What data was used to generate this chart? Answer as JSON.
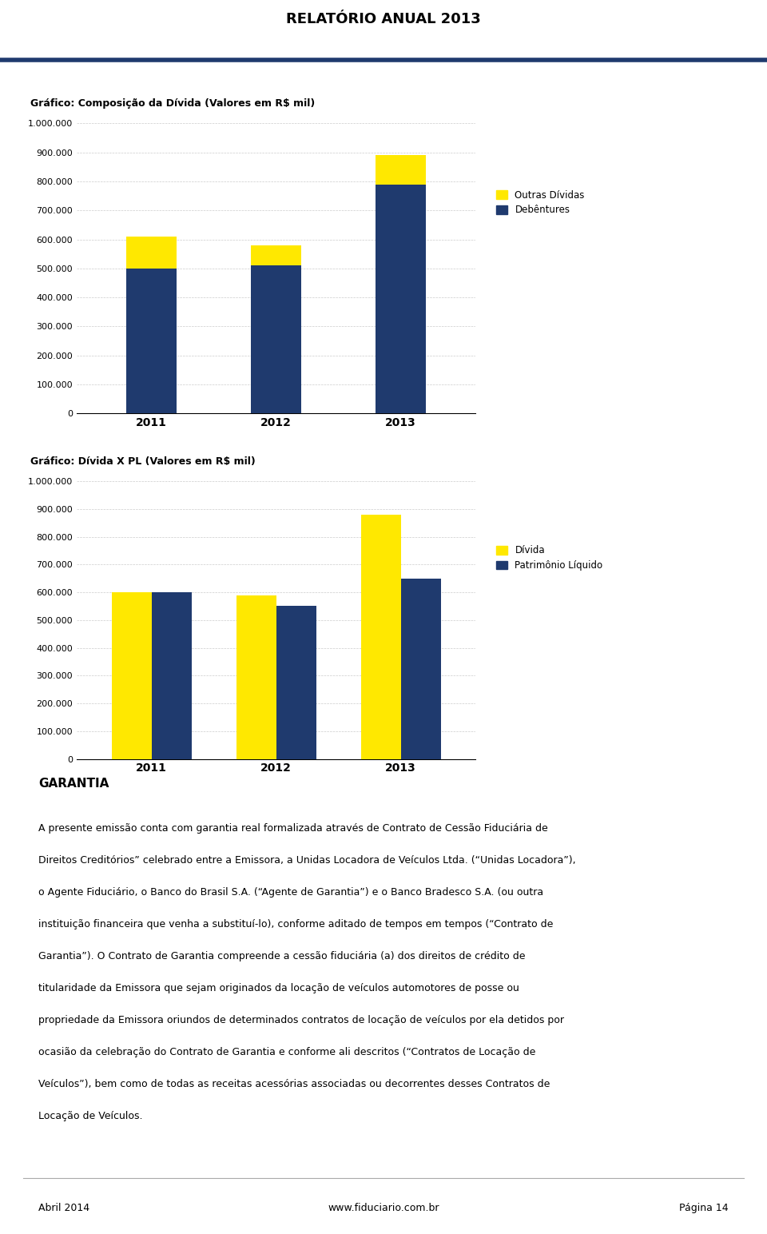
{
  "page_title": "RELATÓRIO ANUAL 2013",
  "chart1_title": "Gráfico: Composição da Dívida (Valores em R$ mil)",
  "chart1_categories": [
    "2011",
    "2012",
    "2013"
  ],
  "chart1_debentures": [
    500000,
    510000,
    790000
  ],
  "chart1_outras": [
    110000,
    70000,
    100000
  ],
  "chart1_legend": [
    "Outras Dívidas",
    "Debêntures"
  ],
  "chart1_ylim": [
    0,
    1000000
  ],
  "chart1_yticks": [
    0,
    100000,
    200000,
    300000,
    400000,
    500000,
    600000,
    700000,
    800000,
    900000,
    1000000
  ],
  "chart2_title": "Gráfico: Dívida X PL (Valores em R$ mil)",
  "chart2_categories": [
    "2011",
    "2012",
    "2013"
  ],
  "chart2_divida": [
    600000,
    590000,
    880000
  ],
  "chart2_pl": [
    600000,
    550000,
    650000
  ],
  "chart2_legend": [
    "Dívida",
    "Patrimônio Líquido"
  ],
  "chart2_ylim": [
    0,
    1000000
  ],
  "chart2_yticks": [
    0,
    100000,
    200000,
    300000,
    400000,
    500000,
    600000,
    700000,
    800000,
    900000,
    1000000
  ],
  "color_yellow": "#FFE800",
  "color_blue": "#1F3A6E",
  "garantia_title": "GARANTIA",
  "garantia_lines": [
    "A presente emissão conta com garantia real formalizada através de Contrato de Cessão Fiduciária de",
    "Direitos Creditórios” celebrado entre a Emissora, a Unidas Locadora de Veículos Ltda. (“Unidas Locadora”),",
    "o Agente Fiduciário, o Banco do Brasil S.A. (“Agente de Garantia”) e o Banco Bradesco S.A. (ou outra",
    "instituição financeira que venha a substituí-lo), conforme aditado de tempos em tempos (“Contrato de",
    "Garantia”). O Contrato de Garantia compreende a cessão fiduciária (a) dos direitos de crédito de",
    "titularidade da Emissora que sejam originados da locação de veículos automotores de posse ou",
    "propriedade da Emissora oriundos de determinados contratos de locação de veículos por ela detidos por",
    "ocasião da celebração do Contrato de Garantia e conforme ali descritos (“Contratos de Locação de",
    "Veículos”), bem como de todas as receitas acessórias associadas ou decorrentes desses Contratos de",
    "Locação de Veículos."
  ],
  "footer_left": "Abril 2014",
  "footer_center": "www.fiduciario.com.br",
  "footer_right": "Página 14",
  "bg_color": "#ffffff",
  "grid_color": "#cccccc",
  "text_color": "#000000",
  "header_line_color": "#1F3A6E"
}
